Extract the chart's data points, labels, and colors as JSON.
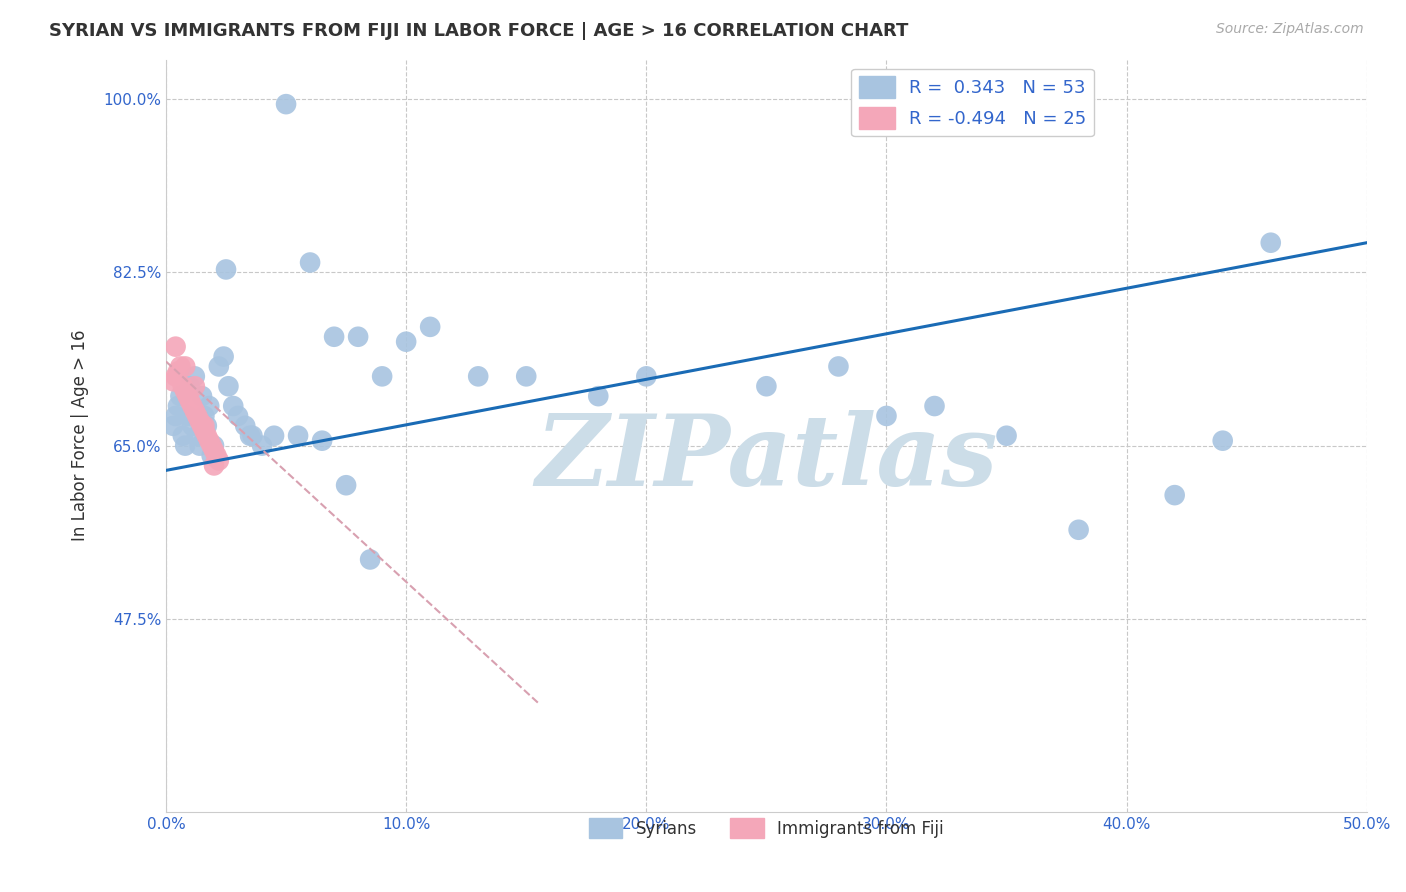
{
  "title": "SYRIAN VS IMMIGRANTS FROM FIJI IN LABOR FORCE | AGE > 16 CORRELATION CHART",
  "source": "Source: ZipAtlas.com",
  "ylabel": "In Labor Force | Age > 16",
  "xlim": [
    0.0,
    0.5
  ],
  "ylim": [
    0.28,
    1.04
  ],
  "xticks": [
    0.0,
    0.1,
    0.2,
    0.3,
    0.4,
    0.5
  ],
  "xtick_labels": [
    "0.0%",
    "10.0%",
    "20.0%",
    "30.0%",
    "40.0%",
    "50.0%"
  ],
  "yticks": [
    0.475,
    0.65,
    0.825,
    1.0
  ],
  "ytick_labels": [
    "47.5%",
    "65.0%",
    "82.5%",
    "100.0%"
  ],
  "syrian_color": "#a8c4e0",
  "fiji_color": "#f4a7b9",
  "trend_syrian_color": "#1a6bb5",
  "trend_fiji_color": "#d8a0b0",
  "watermark": "ZIPatlas",
  "watermark_color": "#ccdde8",
  "grid_color": "#c8c8c8",
  "background_color": "#ffffff",
  "syrian_x": [
    0.003,
    0.004,
    0.005,
    0.006,
    0.007,
    0.008,
    0.009,
    0.01,
    0.011,
    0.012,
    0.013,
    0.014,
    0.015,
    0.016,
    0.017,
    0.018,
    0.019,
    0.02,
    0.022,
    0.024,
    0.026,
    0.028,
    0.03,
    0.033,
    0.036,
    0.04,
    0.05,
    0.06,
    0.07,
    0.08,
    0.09,
    0.1,
    0.11,
    0.13,
    0.15,
    0.18,
    0.2,
    0.25,
    0.28,
    0.3,
    0.32,
    0.35,
    0.38,
    0.42,
    0.44,
    0.46,
    0.025,
    0.035,
    0.045,
    0.055,
    0.065,
    0.075,
    0.085
  ],
  "syrian_y": [
    0.67,
    0.68,
    0.69,
    0.7,
    0.66,
    0.65,
    0.68,
    0.71,
    0.67,
    0.72,
    0.66,
    0.65,
    0.7,
    0.68,
    0.67,
    0.69,
    0.64,
    0.65,
    0.73,
    0.74,
    0.71,
    0.69,
    0.68,
    0.67,
    0.66,
    0.65,
    0.995,
    0.835,
    0.76,
    0.76,
    0.72,
    0.755,
    0.77,
    0.72,
    0.72,
    0.7,
    0.72,
    0.71,
    0.73,
    0.68,
    0.69,
    0.66,
    0.565,
    0.6,
    0.655,
    0.855,
    0.828,
    0.66,
    0.66,
    0.66,
    0.655,
    0.61,
    0.535
  ],
  "fiji_x": [
    0.003,
    0.004,
    0.005,
    0.006,
    0.007,
    0.008,
    0.009,
    0.01,
    0.011,
    0.012,
    0.013,
    0.014,
    0.015,
    0.016,
    0.017,
    0.018,
    0.019,
    0.02,
    0.021,
    0.022,
    0.004,
    0.008,
    0.012,
    0.016,
    0.02
  ],
  "fiji_y": [
    0.715,
    0.72,
    0.725,
    0.73,
    0.71,
    0.705,
    0.7,
    0.695,
    0.69,
    0.685,
    0.68,
    0.675,
    0.67,
    0.665,
    0.66,
    0.655,
    0.65,
    0.645,
    0.64,
    0.635,
    0.75,
    0.73,
    0.71,
    0.67,
    0.63
  ],
  "syr_trend_x0": 0.0,
  "syr_trend_y0": 0.625,
  "syr_trend_x1": 0.5,
  "syr_trend_y1": 0.855,
  "fiji_trend_x0": 0.0,
  "fiji_trend_y0": 0.735,
  "fiji_trend_x1": 0.155,
  "fiji_trend_y1": 0.39
}
